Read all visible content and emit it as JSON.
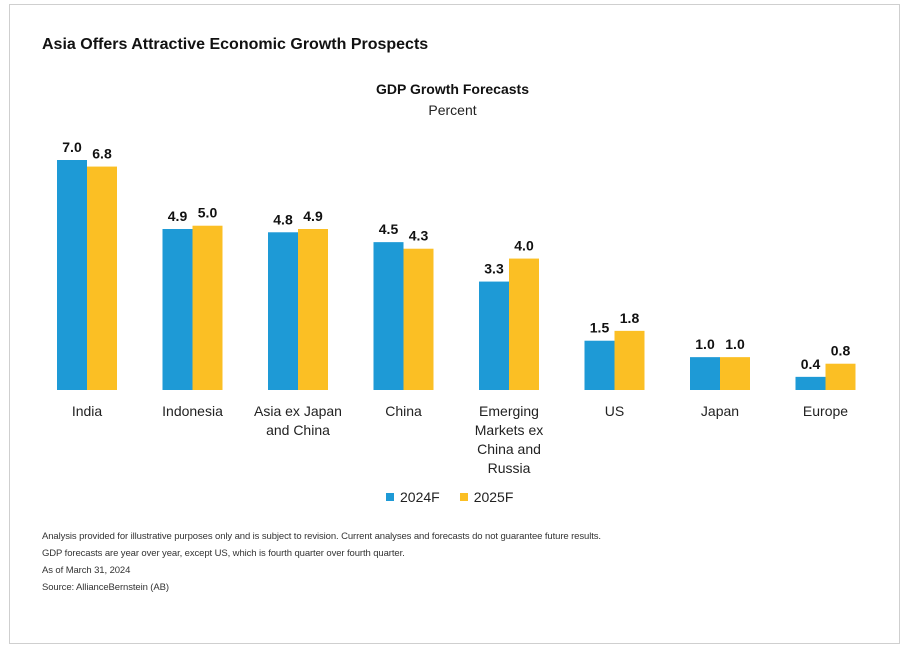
{
  "title": "Asia Offers Attractive Economic Growth Prospects",
  "chart_data": {
    "type": "bar",
    "title": "GDP Growth Forecasts",
    "subtitle": "Percent",
    "categories": [
      "India",
      "Indonesia",
      "Asia ex Japan and China",
      "China",
      "Emerging Markets ex China and Russia",
      "US",
      "Japan",
      "Europe"
    ],
    "category_label_lines": [
      [
        "India"
      ],
      [
        "Indonesia"
      ],
      [
        "Asia ex Japan",
        "and China"
      ],
      [
        "China"
      ],
      [
        "Emerging",
        "Markets ex",
        "China and",
        "Russia"
      ],
      [
        "US"
      ],
      [
        "Japan"
      ],
      [
        "Europe"
      ]
    ],
    "series": [
      {
        "name": "2024F",
        "color": "#1e9ad6",
        "values": [
          7.0,
          4.9,
          4.8,
          4.5,
          3.3,
          1.5,
          1.0,
          0.4
        ]
      },
      {
        "name": "2025F",
        "color": "#fbbf24",
        "values": [
          6.8,
          5.0,
          4.9,
          4.3,
          4.0,
          1.8,
          1.0,
          0.8
        ]
      }
    ],
    "data_labels": [
      [
        "7.0",
        "4.9",
        "4.8",
        "4.5",
        "3.3",
        "1.5",
        "1.0",
        "0.4"
      ],
      [
        "6.8",
        "5.0",
        "4.9",
        "4.3",
        "4.0",
        "1.8",
        "1.0",
        "0.8"
      ]
    ],
    "ylim": [
      0,
      7.0
    ],
    "grid": false,
    "legend_position": "bottom-center"
  },
  "notes": [
    "Analysis provided for illustrative purposes only and is subject to revision. Current analyses and forecasts do not guarantee future results.",
    "GDP forecasts are year over year, except US, which is fourth quarter over fourth quarter.",
    "As of March 31, 2024",
    "Source: AllianceBernstein (AB)"
  ]
}
